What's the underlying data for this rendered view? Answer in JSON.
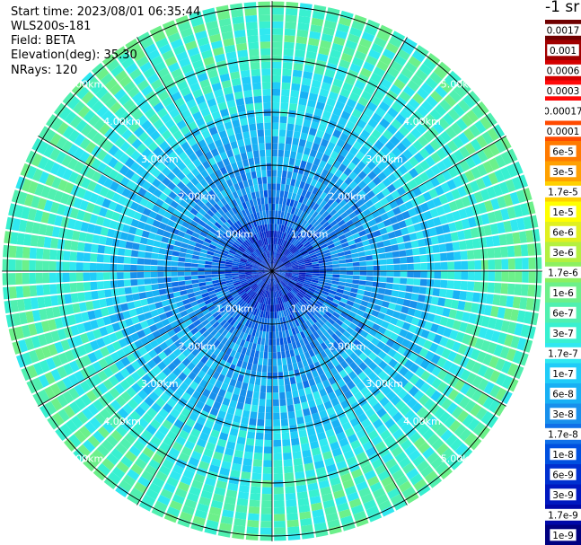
{
  "header": {
    "start_time": "Start time: 2023/08/01 06:35:44",
    "instrument": "WLS200s-181",
    "field": "Field: BETA",
    "elevation": "Elevation(deg): 35.30",
    "nrays": "NRays: 120"
  },
  "chart_data": {
    "type": "heatmap",
    "projection": "polar",
    "n_rays": 120,
    "range_rings_km": [
      "1.00km",
      "2.00km",
      "3.00km",
      "4.00km",
      "5.00km"
    ],
    "ring_label_angles_deg": [
      45,
      135,
      225,
      315
    ],
    "spoke_angles_deg": [
      0,
      30,
      60,
      90,
      120,
      150,
      180,
      210,
      240,
      270,
      300,
      330
    ],
    "max_range_km": 5.1,
    "radial_profile": [
      {
        "range_km": 0.0,
        "color_index": 22
      },
      {
        "range_km": 0.6,
        "color_index": 22
      },
      {
        "range_km": 1.0,
        "color_index": 20
      },
      {
        "range_km": 1.5,
        "color_index": 19
      },
      {
        "range_km": 2.2,
        "color_index": 18
      },
      {
        "range_km": 3.0,
        "color_index": 17
      },
      {
        "range_km": 4.0,
        "color_index": 15
      },
      {
        "range_km": 5.1,
        "color_index": 14
      }
    ],
    "colorbar": {
      "unit_label": "-1 sr",
      "tick_labels": [
        "0.0017",
        "0.001",
        "0.0006",
        "0.0003",
        "0.00017",
        "0.0001",
        "6e-5",
        "3e-5",
        "1.7e-5",
        "1e-5",
        "6e-6",
        "3e-6",
        "1.7e-6",
        "1e-6",
        "6e-7",
        "3e-7",
        "1.7e-7",
        "1e-7",
        "6e-8",
        "3e-8",
        "1.7e-8",
        "1e-8",
        "6e-9",
        "3e-9",
        "1.7e-9",
        "1e-9"
      ],
      "colors": [
        "#700000",
        "#a00000",
        "#d40000",
        "#ff0a0a",
        "#ffffff",
        "#ff4a00",
        "#ff7a00",
        "#ffa000",
        "#ffd000",
        "#ffff00",
        "#e0f020",
        "#b4f040",
        "#8cf060",
        "#6cf08a",
        "#50f0b0",
        "#38f0d0",
        "#30e8f0",
        "#20ccf8",
        "#18b0f4",
        "#1890ec",
        "#1070e8",
        "#0050e0",
        "#0030d0",
        "#0018c0",
        "#0008a8",
        "#000080"
      ]
    },
    "grid": true
  }
}
